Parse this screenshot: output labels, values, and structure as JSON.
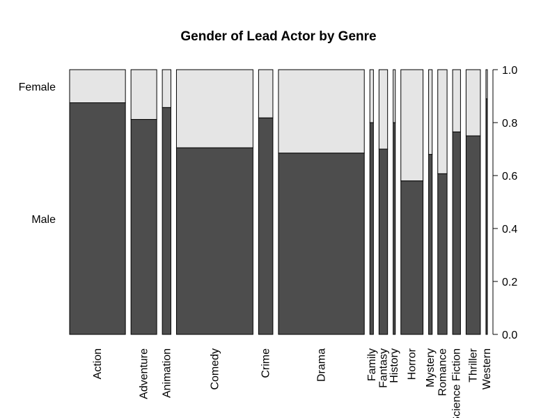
{
  "chart_data": {
    "type": "mosaic",
    "title": "Gender of Lead Actor by Genre",
    "xlabel": "",
    "ylabel": "",
    "ylim": [
      0,
      1
    ],
    "y_ticks": [
      "0.0",
      "0.2",
      "0.4",
      "0.6",
      "0.8",
      "1.0"
    ],
    "row_labels": [
      "Female",
      "Male"
    ],
    "colors": {
      "male": "#4d4d4d",
      "female": "#e5e5e5",
      "stroke": "#000000"
    },
    "categories": [
      "Action",
      "Adventure",
      "Animation",
      "Comedy",
      "Crime",
      "Drama",
      "Family",
      "Fantasy",
      "History",
      "Horror",
      "Mystery",
      "Romance",
      "Science Fiction",
      "Thriller",
      "Western"
    ],
    "genre_weights": [
      78,
      36,
      12,
      107,
      20,
      120,
      5,
      12,
      3,
      31,
      5,
      13,
      11,
      20,
      2
    ],
    "series": [
      {
        "name": "Male",
        "values": [
          0.875,
          0.812,
          0.857,
          0.705,
          0.818,
          0.685,
          0.8,
          0.7,
          0.8,
          0.58,
          0.68,
          0.607,
          0.765,
          0.75,
          0.89
        ]
      },
      {
        "name": "Female",
        "values": [
          0.125,
          0.188,
          0.143,
          0.295,
          0.182,
          0.315,
          0.2,
          0.3,
          0.2,
          0.42,
          0.32,
          0.393,
          0.235,
          0.25,
          0.11
        ]
      }
    ]
  }
}
